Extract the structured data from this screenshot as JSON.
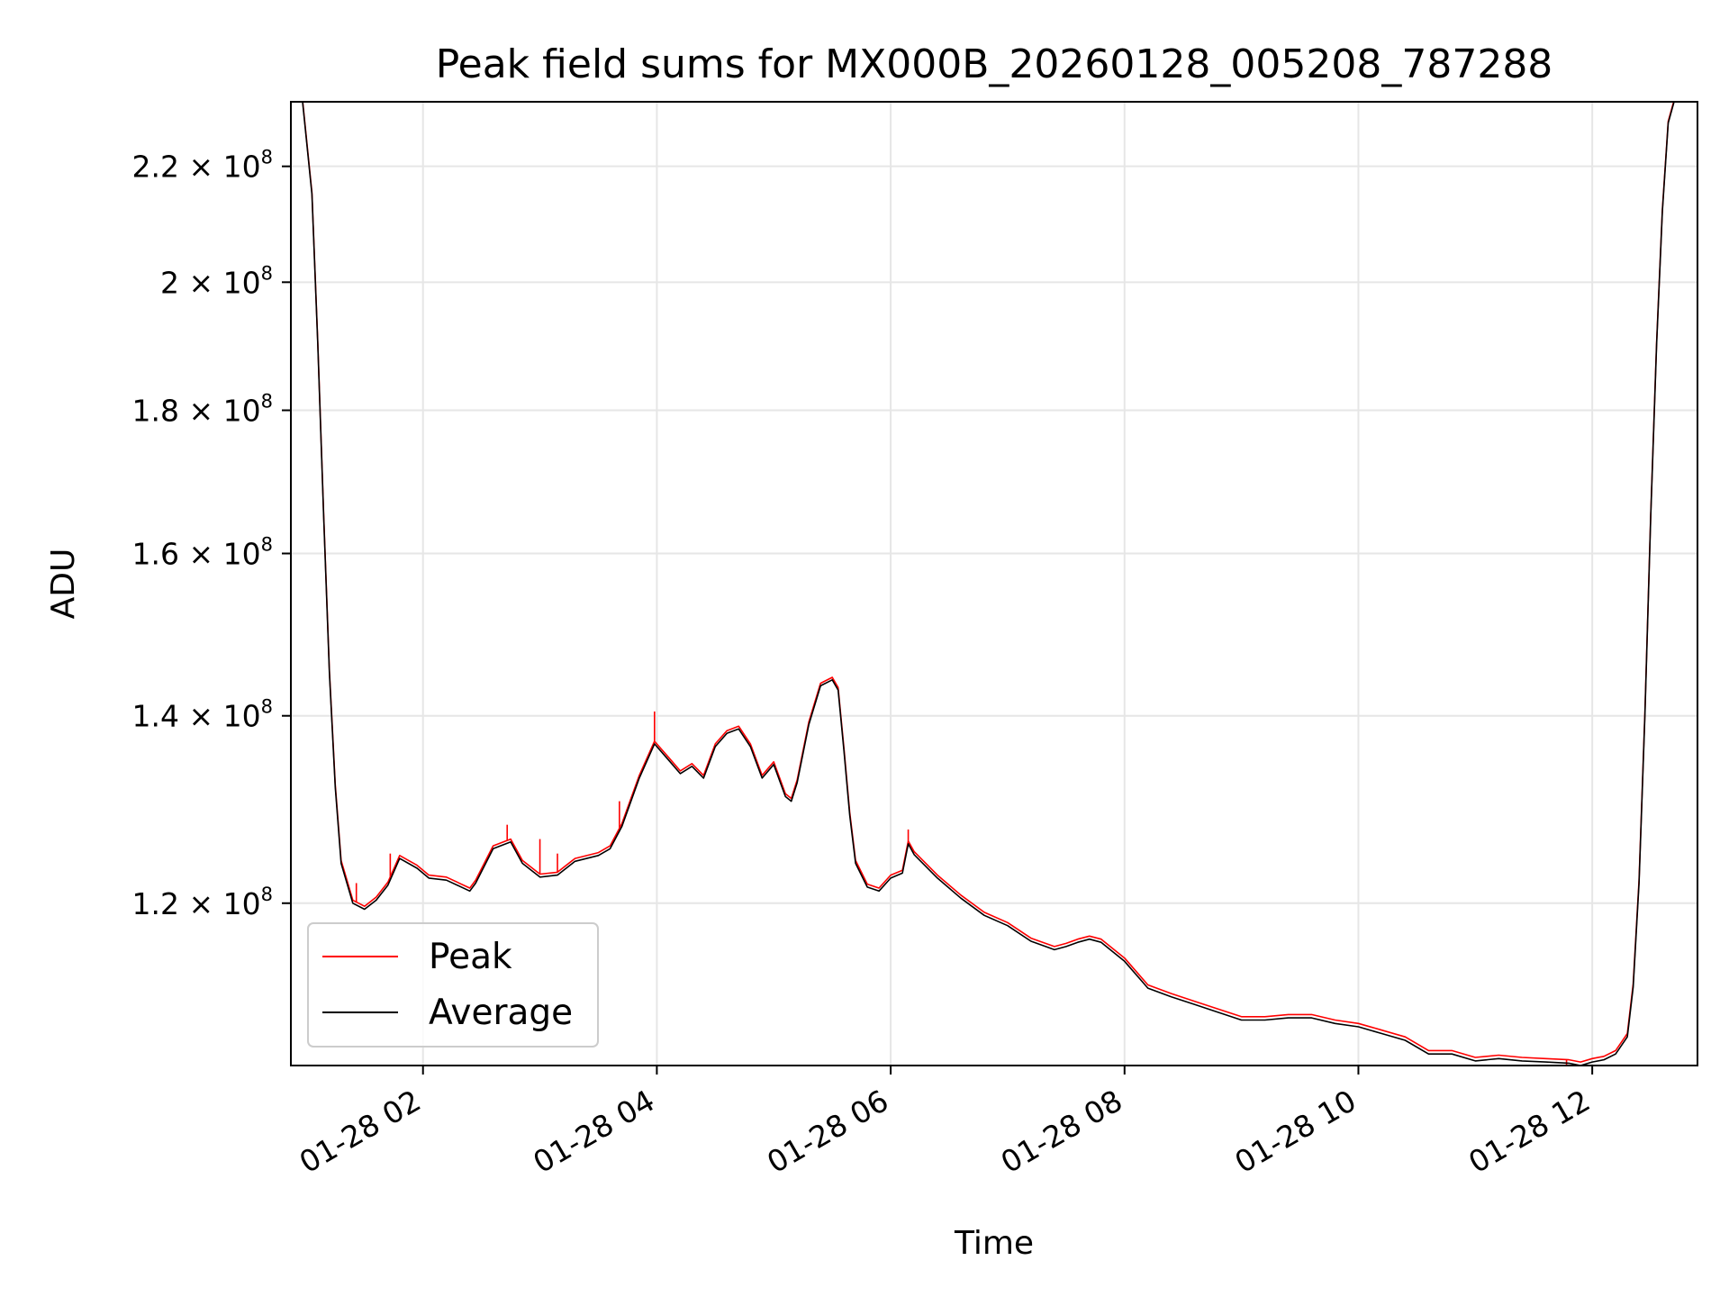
{
  "chart_data": {
    "type": "line",
    "title": "Peak field sums for MX000B_20260128_005208_787288",
    "xlabel": "Time",
    "ylabel": "ADU",
    "y_scale": "log",
    "x_range_hours": [
      0.87,
      12.9
    ],
    "ylim": [
      105000000,
      232000000
    ],
    "grid": true,
    "legend_position": "lower-left",
    "x_ticks": [
      {
        "hour": 2,
        "label": "01-28 02"
      },
      {
        "hour": 4,
        "label": "01-28 04"
      },
      {
        "hour": 6,
        "label": "01-28 06"
      },
      {
        "hour": 8,
        "label": "01-28 08"
      },
      {
        "hour": 10,
        "label": "01-28 10"
      },
      {
        "hour": 12,
        "label": "01-28 12"
      }
    ],
    "y_ticks": [
      {
        "value": 120000000,
        "mantissa": "1.2",
        "exp": "8"
      },
      {
        "value": 140000000,
        "mantissa": "1.4",
        "exp": "8"
      },
      {
        "value": 160000000,
        "mantissa": "1.6",
        "exp": "8"
      },
      {
        "value": 180000000,
        "mantissa": "1.8",
        "exp": "8"
      },
      {
        "value": 200000000,
        "mantissa": "2",
        "exp": "8"
      },
      {
        "value": 220000000,
        "mantissa": "2.2",
        "exp": "8"
      }
    ],
    "series": [
      {
        "name": "Peak",
        "color": "#ff0000",
        "offset": 300000,
        "spikes": [
          {
            "hour": 1.43,
            "value": 122000000
          },
          {
            "hour": 1.72,
            "value": 125000000
          },
          {
            "hour": 2.72,
            "value": 128000000
          },
          {
            "hour": 3.0,
            "value": 126500000
          },
          {
            "hour": 3.15,
            "value": 125000000
          },
          {
            "hour": 3.68,
            "value": 130500000
          },
          {
            "hour": 3.98,
            "value": 140500000
          },
          {
            "hour": 6.15,
            "value": 127500000
          },
          {
            "hour": 11.78,
            "value": 104800000
          },
          {
            "hour": 11.88,
            "value": 105300000
          }
        ]
      },
      {
        "name": "Average",
        "color": "#000000",
        "offset": 0,
        "spikes": []
      }
    ],
    "x": [
      0.87,
      0.97,
      1.05,
      1.1,
      1.15,
      1.2,
      1.25,
      1.3,
      1.4,
      1.5,
      1.6,
      1.7,
      1.8,
      1.95,
      2.05,
      2.2,
      2.4,
      2.45,
      2.6,
      2.75,
      2.85,
      3.0,
      3.15,
      3.3,
      3.5,
      3.6,
      3.7,
      3.85,
      3.98,
      4.1,
      4.2,
      4.3,
      4.4,
      4.5,
      4.6,
      4.7,
      4.8,
      4.9,
      5.0,
      5.1,
      5.15,
      5.2,
      5.3,
      5.4,
      5.5,
      5.55,
      5.6,
      5.65,
      5.7,
      5.8,
      5.9,
      6.0,
      6.1,
      6.15,
      6.2,
      6.4,
      6.6,
      6.8,
      7.0,
      7.2,
      7.4,
      7.5,
      7.6,
      7.7,
      7.8,
      8.0,
      8.2,
      8.4,
      8.6,
      8.8,
      9.0,
      9.2,
      9.4,
      9.6,
      9.8,
      10.0,
      10.2,
      10.4,
      10.6,
      10.8,
      11.0,
      11.2,
      11.4,
      11.6,
      11.8,
      11.9,
      12.0,
      12.1,
      12.2,
      12.3,
      12.35,
      12.4,
      12.45,
      12.5,
      12.55,
      12.6,
      12.65,
      12.7,
      12.9
    ],
    "y": [
      232000000,
      232000000,
      215000000,
      190000000,
      165000000,
      145000000,
      132000000,
      124000000,
      120000000,
      119400000,
      120300000,
      121800000,
      124500000,
      123500000,
      122500000,
      122300000,
      121200000,
      122000000,
      125500000,
      126200000,
      124000000,
      122600000,
      122800000,
      124200000,
      124800000,
      125500000,
      127800000,
      133000000,
      136800000,
      135000000,
      133500000,
      134300000,
      133000000,
      136500000,
      138000000,
      138500000,
      136500000,
      133000000,
      134500000,
      131000000,
      130500000,
      132500000,
      139000000,
      143500000,
      144200000,
      143000000,
      136000000,
      129000000,
      124000000,
      121600000,
      121200000,
      122500000,
      123000000,
      126000000,
      124900000,
      122500000,
      120500000,
      118800000,
      117800000,
      116300000,
      115500000,
      115800000,
      116200000,
      116500000,
      116200000,
      114400000,
      111900000,
      111100000,
      110400000,
      109700000,
      109000000,
      109000000,
      109200000,
      109200000,
      108700000,
      108400000,
      107800000,
      107200000,
      106000000,
      106000000,
      105400000,
      105600000,
      105400000,
      105300000,
      105200000,
      105000000,
      105300000,
      105500000,
      106000000,
      107500000,
      112000000,
      122000000,
      140000000,
      165000000,
      190000000,
      212000000,
      228000000,
      232000000,
      232000000
    ]
  }
}
